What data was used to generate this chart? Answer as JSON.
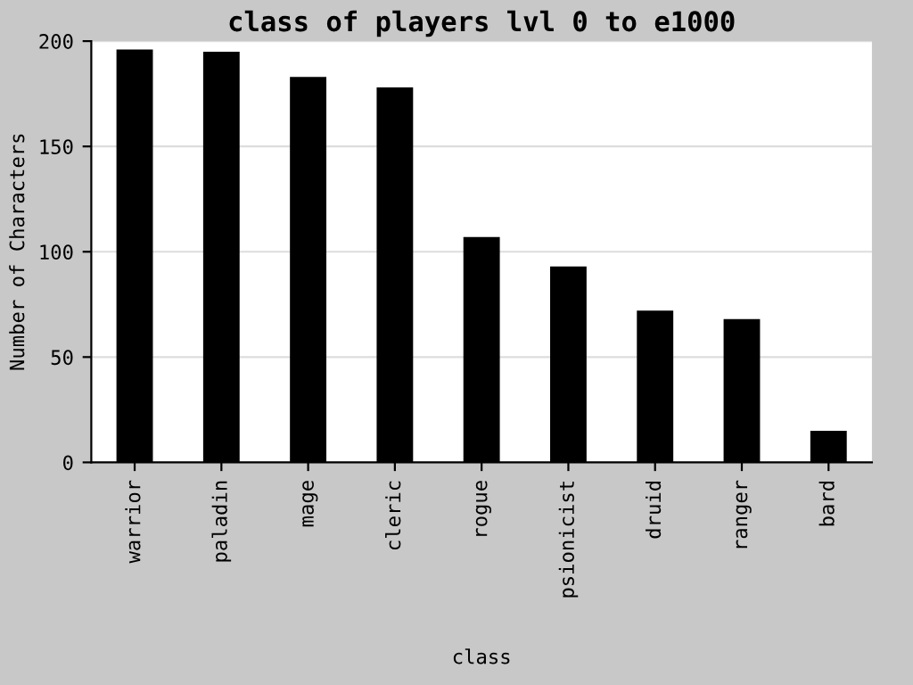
{
  "chart_data": {
    "type": "bar",
    "title": "class of players lvl 0 to e1000",
    "xlabel": "class",
    "ylabel": "Number of Characters",
    "categories": [
      "warrior",
      "paladin",
      "mage",
      "cleric",
      "rogue",
      "psionicist",
      "druid",
      "ranger",
      "bard"
    ],
    "values": [
      196,
      195,
      183,
      178,
      107,
      93,
      72,
      68,
      15
    ],
    "color": "#000000",
    "ylim": [
      0,
      200
    ],
    "yticks": [
      0,
      50,
      100,
      150,
      200
    ],
    "grid": "y"
  }
}
